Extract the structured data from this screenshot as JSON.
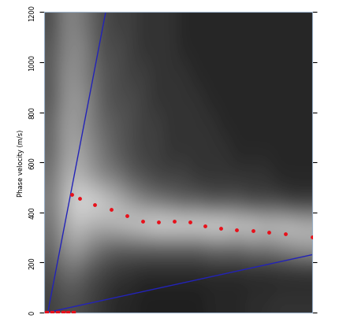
{
  "chart_data": {
    "type": "heatmap",
    "y_label": "Phase velocity (m/s)",
    "xlim": [
      0,
      50
    ],
    "ylim": [
      0,
      1200
    ],
    "yticks": [
      0,
      200,
      400,
      600,
      800,
      1000,
      1200
    ],
    "tick_labels": "y",
    "color": "gray",
    "zlim": [
      0,
      1
    ],
    "cells": [
      [
        0.25,
        0.3,
        0.3,
        0.25,
        0.2,
        0.15,
        0.15,
        0.12,
        0.12,
        0.12,
        0.12,
        0.12,
        0.15,
        0.15,
        0.15,
        0.18,
        0.18,
        0.2,
        0.2,
        0.2
      ],
      [
        0.3,
        0.4,
        0.4,
        0.3,
        0.25,
        0.2,
        0.18,
        0.15,
        0.15,
        0.15,
        0.15,
        0.15,
        0.15,
        0.15,
        0.15,
        0.15,
        0.15,
        0.15,
        0.15,
        0.15
      ],
      [
        0.4,
        0.55,
        0.6,
        0.5,
        0.4,
        0.35,
        0.35,
        0.35,
        0.35,
        0.35,
        0.35,
        0.35,
        0.4,
        0.4,
        0.4,
        0.45,
        0.45,
        0.5,
        0.55,
        0.6
      ],
      [
        0.45,
        0.65,
        0.75,
        0.7,
        0.7,
        0.75,
        0.8,
        0.85,
        0.9,
        0.9,
        0.9,
        0.9,
        0.9,
        0.9,
        0.85,
        0.85,
        0.8,
        0.8,
        0.8,
        0.75
      ],
      [
        0.5,
        0.7,
        0.85,
        0.85,
        0.8,
        0.7,
        0.6,
        0.5,
        0.45,
        0.4,
        0.35,
        0.35,
        0.3,
        0.3,
        0.3,
        0.25,
        0.25,
        0.25,
        0.2,
        0.2
      ],
      [
        0.45,
        0.65,
        0.7,
        0.6,
        0.5,
        0.45,
        0.35,
        0.3,
        0.25,
        0.25,
        0.25,
        0.2,
        0.2,
        0.2,
        0.2,
        0.2,
        0.2,
        0.15,
        0.15,
        0.15
      ],
      [
        0.4,
        0.6,
        0.65,
        0.55,
        0.45,
        0.35,
        0.3,
        0.25,
        0.25,
        0.2,
        0.2,
        0.2,
        0.2,
        0.2,
        0.15,
        0.15,
        0.15,
        0.15,
        0.15,
        0.15
      ],
      [
        0.4,
        0.6,
        0.6,
        0.5,
        0.4,
        0.35,
        0.3,
        0.25,
        0.25,
        0.2,
        0.2,
        0.2,
        0.2,
        0.15,
        0.15,
        0.15,
        0.15,
        0.15,
        0.15,
        0.15
      ],
      [
        0.35,
        0.55,
        0.6,
        0.5,
        0.35,
        0.3,
        0.3,
        0.25,
        0.2,
        0.2,
        0.2,
        0.2,
        0.15,
        0.15,
        0.15,
        0.15,
        0.15,
        0.15,
        0.15,
        0.15
      ],
      [
        0.35,
        0.55,
        0.55,
        0.45,
        0.35,
        0.3,
        0.25,
        0.25,
        0.2,
        0.2,
        0.2,
        0.15,
        0.15,
        0.15,
        0.15,
        0.15,
        0.15,
        0.15,
        0.15,
        0.15
      ],
      [
        0.35,
        0.5,
        0.55,
        0.45,
        0.3,
        0.3,
        0.25,
        0.2,
        0.2,
        0.2,
        0.15,
        0.15,
        0.15,
        0.15,
        0.15,
        0.15,
        0.15,
        0.15,
        0.15,
        0.15
      ],
      [
        0.3,
        0.5,
        0.5,
        0.4,
        0.3,
        0.25,
        0.25,
        0.2,
        0.2,
        0.2,
        0.15,
        0.15,
        0.15,
        0.15,
        0.15,
        0.15,
        0.15,
        0.15,
        0.15,
        0.15
      ]
    ],
    "series": [
      {
        "type": "line",
        "color": "#2323b8",
        "line_style": "solid",
        "x": [
          0.7,
          11.5
        ],
        "values": [
          0,
          1200
        ]
      },
      {
        "type": "line",
        "color": "#2323b8",
        "line_style": "solid",
        "x": [
          0.7,
          50
        ],
        "values": [
          0,
          230
        ]
      },
      {
        "type": "scatter",
        "color": "#e8101a",
        "marker": "o",
        "x": [
          5.1,
          6.6,
          9.5,
          12.5,
          15.4,
          18.4,
          21.3,
          24.3,
          27.2,
          30.0,
          33.0,
          36.0,
          39.0,
          42.0,
          45.0,
          50.0
        ],
        "values": [
          470,
          455,
          430,
          410,
          385,
          365,
          360,
          365,
          360,
          345,
          335,
          330,
          325,
          320,
          315,
          300
        ]
      },
      {
        "type": "scatter",
        "color": "#e8101a",
        "marker": "s",
        "x": [
          0.5,
          1.5,
          2.5,
          3.5,
          4.5,
          5.5
        ],
        "values": [
          0,
          0,
          0,
          0,
          0,
          0
        ]
      }
    ]
  }
}
